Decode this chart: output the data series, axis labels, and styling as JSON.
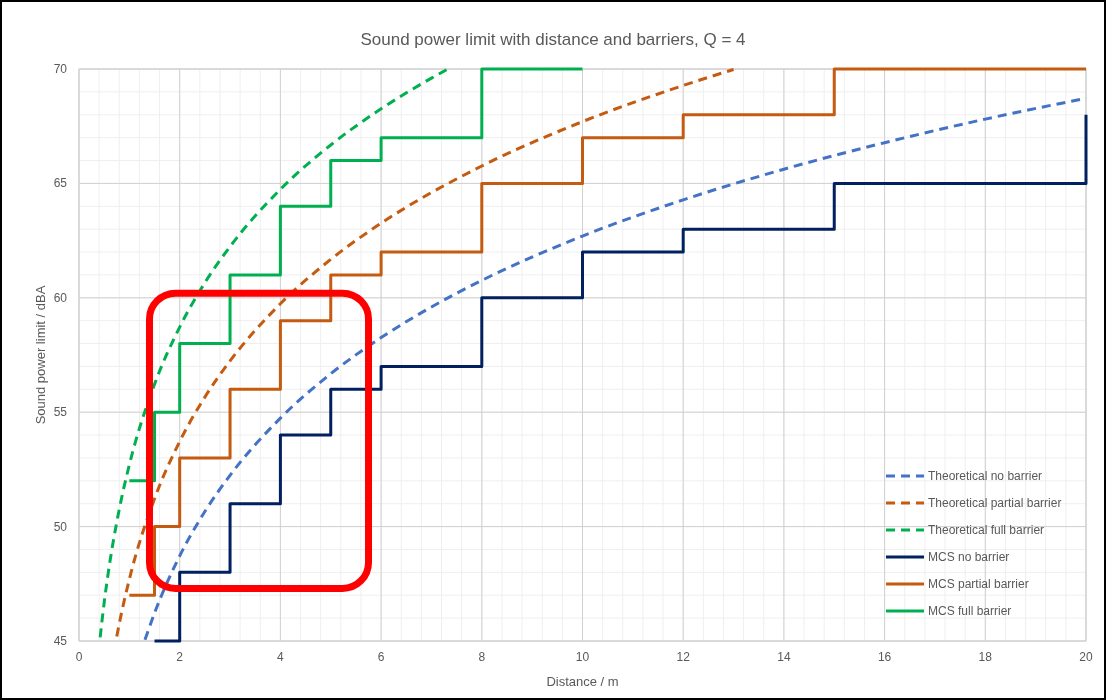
{
  "chart_data": {
    "type": "line",
    "title": "Sound power limit with distance and barriers, Q = 4",
    "xlabel": "Distance / m",
    "ylabel": "Sound power limit / dBA",
    "xlim": [
      0,
      20
    ],
    "xticks": [
      0,
      2,
      4,
      6,
      8,
      10,
      12,
      14,
      16,
      18,
      20
    ],
    "ylim": [
      45,
      70
    ],
    "yticks": [
      45,
      50,
      55,
      60,
      65,
      70
    ],
    "grid": true,
    "legend": "bottom right",
    "series": [
      {
        "name": "Theoretical no barrier",
        "color": "#4472c4",
        "line_style": "dashed",
        "x": [
          1.31,
          1.5,
          2,
          2.5,
          3,
          4,
          5,
          6,
          7,
          8,
          10,
          12,
          14,
          16,
          18,
          20
        ],
        "values": [
          45.05,
          46.22,
          48.72,
          50.66,
          52.24,
          54.74,
          56.68,
          58.26,
          59.6,
          60.76,
          62.7,
          64.28,
          65.62,
          66.78,
          67.81,
          68.72
        ]
      },
      {
        "name": "Theoretical partial barrier",
        "color": "#c55a11",
        "line_style": "dashed",
        "x": [
          0.75,
          0.8,
          1,
          1.5,
          2,
          2.5,
          3,
          4,
          5,
          6,
          8,
          10,
          12,
          13
        ],
        "values": [
          45.2,
          45.76,
          47.7,
          51.22,
          53.72,
          55.66,
          57.24,
          59.74,
          61.68,
          63.26,
          65.76,
          67.7,
          69.28,
          69.98
        ]
      },
      {
        "name": "Theoretical full barrier",
        "color": "#00b050",
        "line_style": "dashed",
        "x": [
          0.42,
          0.5,
          0.6,
          0.8,
          1,
          1.5,
          2,
          2.5,
          3,
          4,
          5,
          6,
          7,
          7.3
        ],
        "values": [
          45.16,
          46.68,
          48.26,
          50.76,
          52.7,
          56.22,
          58.72,
          60.66,
          62.24,
          64.74,
          66.68,
          68.26,
          69.6,
          69.97
        ]
      },
      {
        "name": "MCS no barrier",
        "color": "#002060",
        "type": "step",
        "line_style": "solid",
        "x": [
          1.5,
          2,
          3,
          4,
          5,
          6,
          8,
          10,
          12,
          15,
          20
        ],
        "values": [
          45,
          48,
          51,
          54,
          56,
          57,
          60,
          62,
          63,
          65,
          68
        ]
      },
      {
        "name": "MCS partial barrier",
        "color": "#c55a11",
        "type": "step",
        "line_style": "solid",
        "x": [
          1,
          1.5,
          2,
          3,
          4,
          5,
          6,
          8,
          10,
          12,
          15,
          20
        ],
        "values": [
          47,
          50,
          53,
          56,
          59,
          61,
          62,
          65,
          67,
          68,
          70,
          70
        ]
      },
      {
        "name": "MCS full barrier",
        "color": "#00b050",
        "type": "step",
        "line_style": "solid",
        "x": [
          1,
          1.5,
          2,
          3,
          4,
          5,
          6,
          8,
          10
        ],
        "values": [
          52,
          55,
          58,
          61,
          64,
          66,
          67,
          70,
          70
        ]
      }
    ]
  }
}
